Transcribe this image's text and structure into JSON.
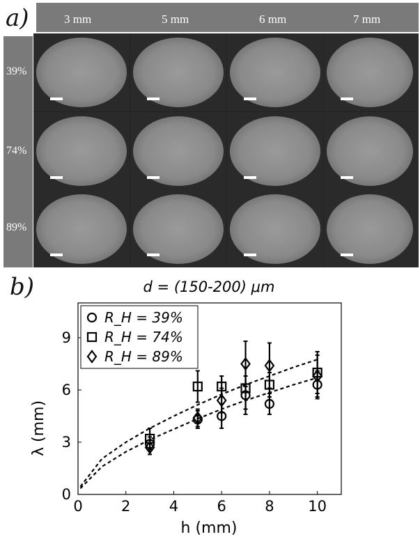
{
  "panel_a": {
    "label": "a)",
    "columns": [
      "3 mm",
      "5 mm",
      "6 mm",
      "7 mm"
    ],
    "rows": [
      "39%",
      "74%",
      "89%"
    ]
  },
  "panel_b": {
    "label": "b)"
  },
  "chart_data": {
    "type": "scatter",
    "title": "d = (150-200) μm",
    "xlabel": "h (mm)",
    "ylabel": "λ (mm)",
    "xlim": [
      0,
      11
    ],
    "ylim": [
      0,
      11
    ],
    "xticks": [
      0,
      2,
      4,
      6,
      8,
      10
    ],
    "yticks": [
      0,
      3,
      6,
      9
    ],
    "legend_position": "top-left",
    "series": [
      {
        "name": "R_H = 39%",
        "marker": "circle",
        "points": [
          {
            "x": 3,
            "y": 2.9,
            "err": 0.4
          },
          {
            "x": 5,
            "y": 4.3,
            "err": 0.5
          },
          {
            "x": 6,
            "y": 4.5,
            "err": 0.7
          },
          {
            "x": 7,
            "y": 5.7,
            "err": 1.1
          },
          {
            "x": 8,
            "y": 5.2,
            "err": 0.6
          },
          {
            "x": 10,
            "y": 6.3,
            "err": 0.8
          }
        ]
      },
      {
        "name": "R_H = 74%",
        "marker": "square",
        "points": [
          {
            "x": 3,
            "y": 3.2,
            "err": 0.6
          },
          {
            "x": 5,
            "y": 6.2,
            "err": 0.9
          },
          {
            "x": 6,
            "y": 6.2,
            "err": 0.6
          },
          {
            "x": 7,
            "y": 6.1,
            "err": 1.2
          },
          {
            "x": 8,
            "y": 6.3,
            "err": 0.7
          },
          {
            "x": 10,
            "y": 7.0,
            "err": 1.2
          }
        ]
      },
      {
        "name": "R_H = 89%",
        "marker": "diamond",
        "points": [
          {
            "x": 3,
            "y": 2.7,
            "err": 0.4
          },
          {
            "x": 5,
            "y": 4.4,
            "err": 0.5
          },
          {
            "x": 6,
            "y": 5.4,
            "err": 0.7
          },
          {
            "x": 7,
            "y": 7.5,
            "err": 1.3
          },
          {
            "x": 8,
            "y": 7.4,
            "err": 1.3
          },
          {
            "x": 10,
            "y": 6.8,
            "err": 1.2
          }
        ]
      }
    ],
    "fit_curves": [
      {
        "style": "dashed",
        "points": [
          [
            0.1,
            0.35
          ],
          [
            1,
            1.6
          ],
          [
            2,
            2.45
          ],
          [
            3,
            3.15
          ],
          [
            4,
            3.75
          ],
          [
            5,
            4.35
          ],
          [
            6,
            4.9
          ],
          [
            7,
            5.4
          ],
          [
            8,
            5.85
          ],
          [
            9,
            6.3
          ],
          [
            10,
            6.7
          ]
        ]
      },
      {
        "style": "dashed",
        "points": [
          [
            0.1,
            0.45
          ],
          [
            1,
            2.05
          ],
          [
            2,
            3.0
          ],
          [
            3,
            3.8
          ],
          [
            4,
            4.5
          ],
          [
            5,
            5.15
          ],
          [
            6,
            5.75
          ],
          [
            7,
            6.3
          ],
          [
            8,
            6.8
          ],
          [
            9,
            7.3
          ],
          [
            10,
            7.75
          ]
        ]
      }
    ]
  }
}
